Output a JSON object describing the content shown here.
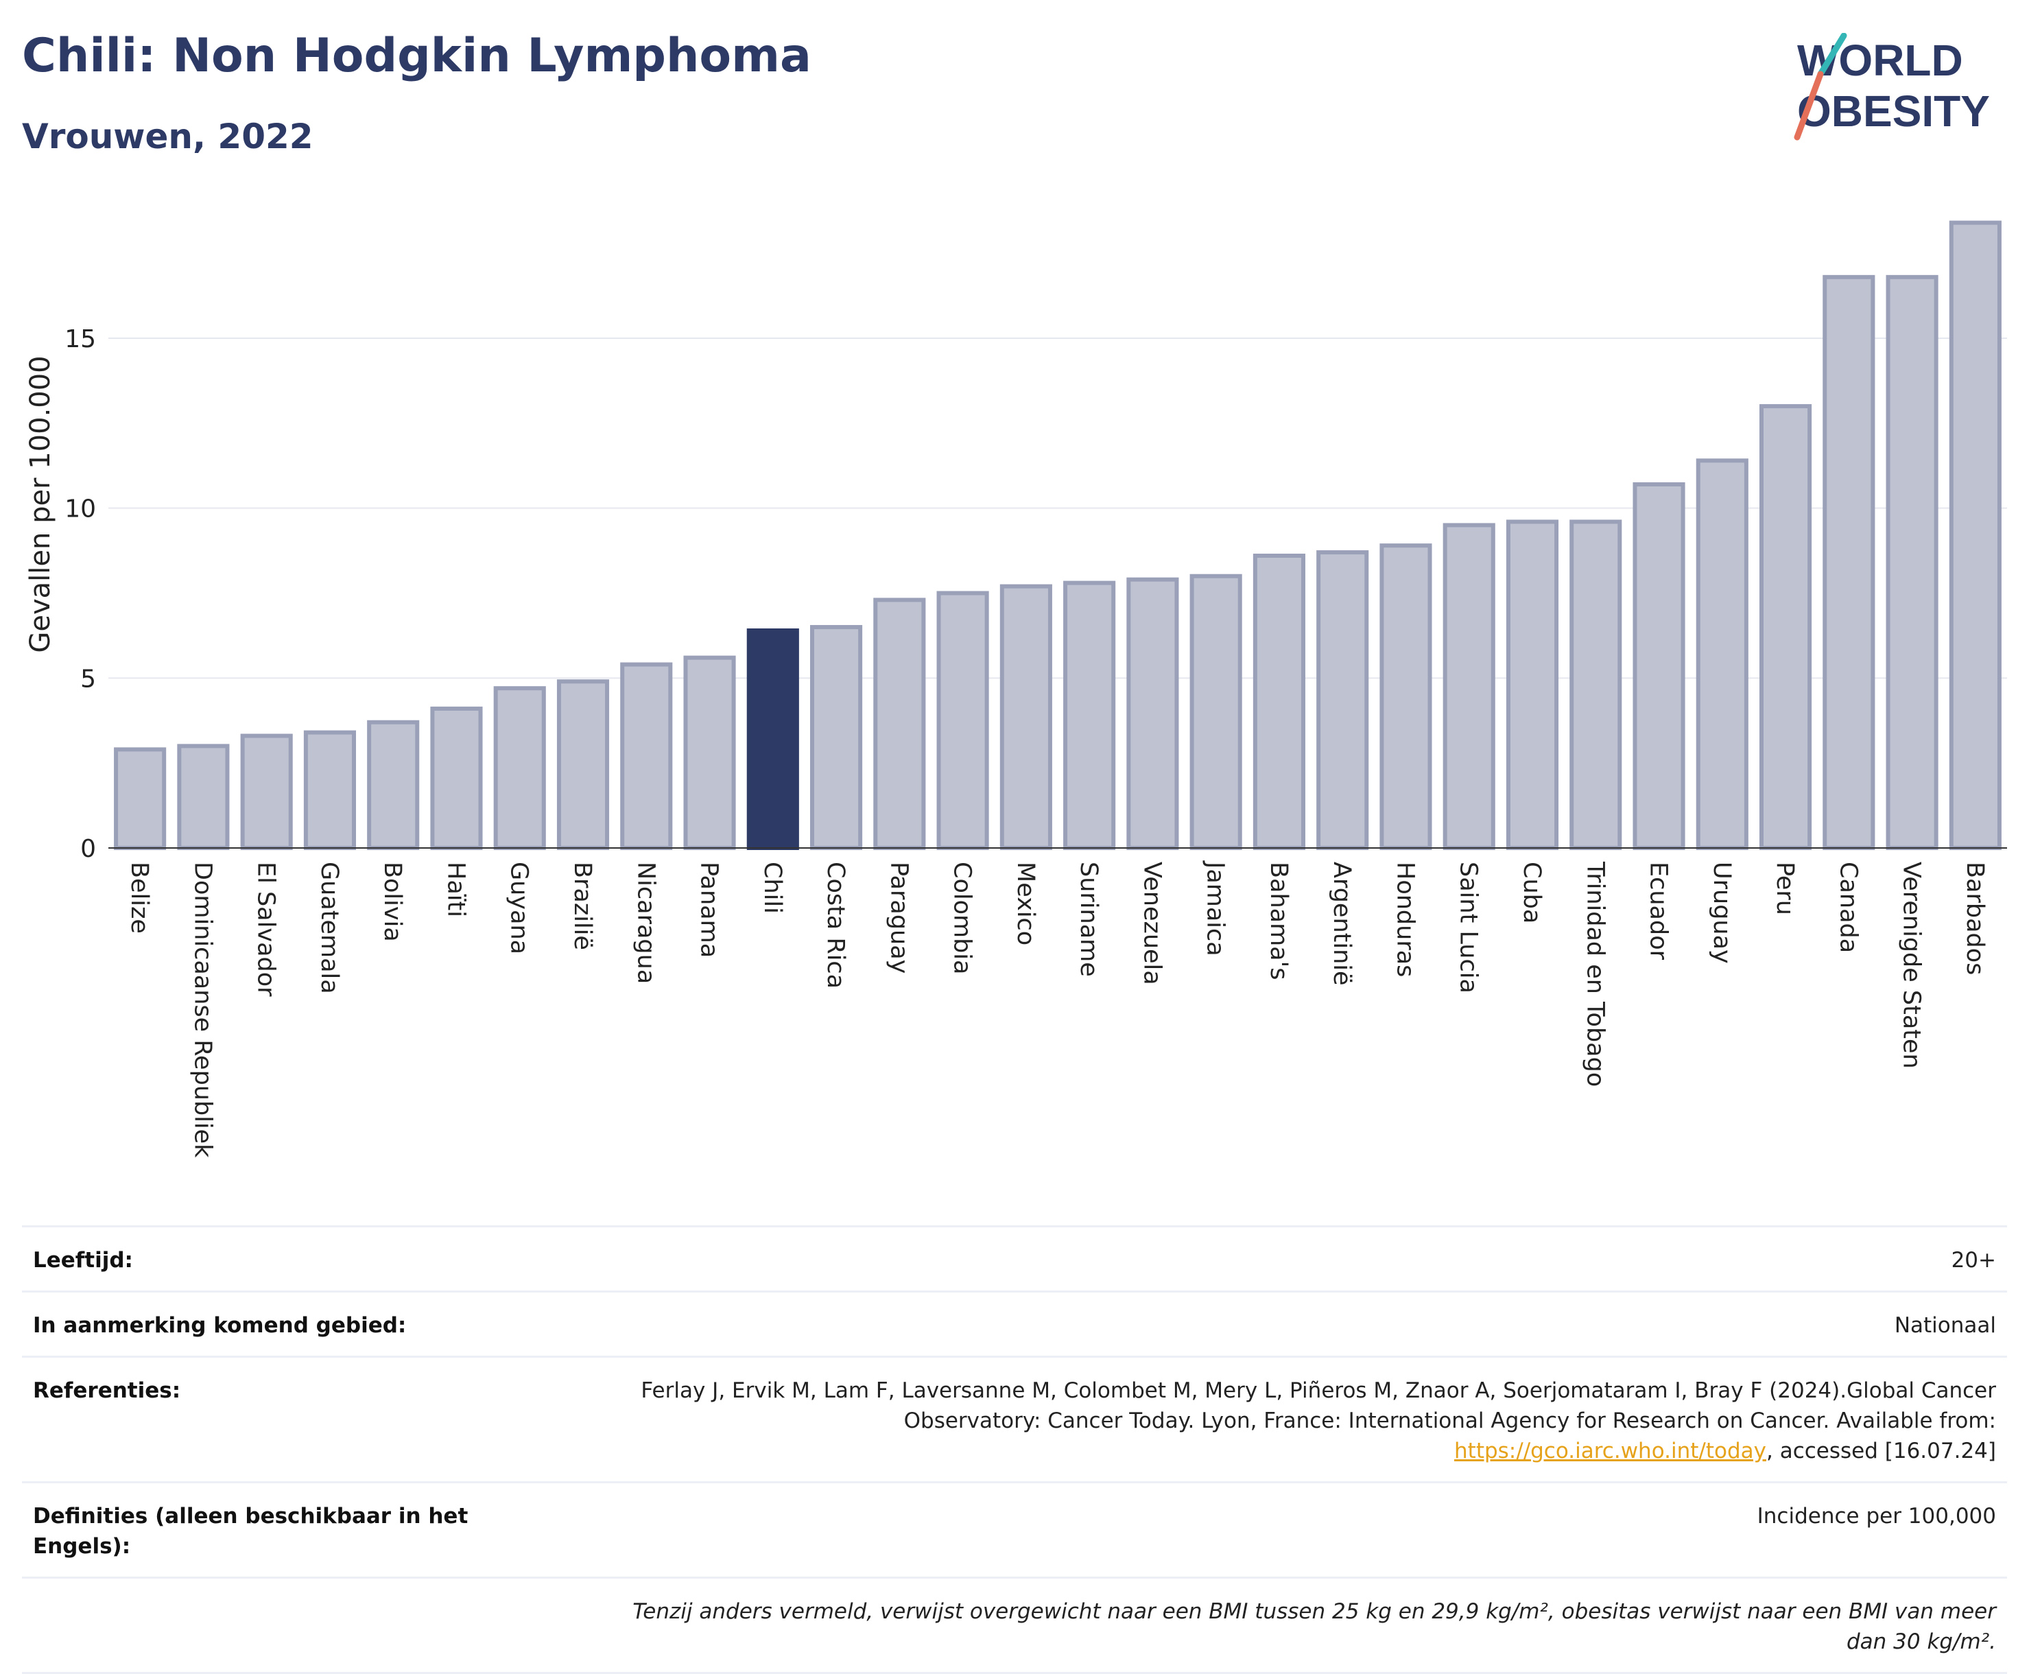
{
  "header": {
    "title": "Chili: Non Hodgkin Lymphoma",
    "subtitle": "Vrouwen, 2022"
  },
  "logo": {
    "line1": "WORLD",
    "line2": "OBESITY"
  },
  "chart_data": {
    "type": "bar",
    "ylabel": "Gevallen per 100.000",
    "xlabel": "",
    "ylim": [
      0,
      19
    ],
    "yticks": [
      0,
      5,
      10,
      15
    ],
    "grid": true,
    "highlight": "Chili",
    "colors": {
      "bar": "#bfc3d1",
      "bar_edge": "#9aa0b8",
      "highlight": "#2d3a66"
    },
    "categories": [
      "Belize",
      "Dominicaanse Republiek",
      "El Salvador",
      "Guatemala",
      "Bolivia",
      "Haïti",
      "Guyana",
      "Brazilië",
      "Nicaragua",
      "Panama",
      "Chili",
      "Costa Rica",
      "Paraguay",
      "Colombia",
      "Mexico",
      "Suriname",
      "Venezuela",
      "Jamaica",
      "Bahama's",
      "Argentinië",
      "Honduras",
      "Saint Lucia",
      "Cuba",
      "Trinidad en Tobago",
      "Ecuador",
      "Uruguay",
      "Peru",
      "Canada",
      "Verenigde Staten",
      "Barbados"
    ],
    "values": [
      2.9,
      3.0,
      3.3,
      3.4,
      3.7,
      4.1,
      4.7,
      4.9,
      5.4,
      5.6,
      6.4,
      6.5,
      7.3,
      7.5,
      7.7,
      7.8,
      7.9,
      8.0,
      8.6,
      8.7,
      8.9,
      9.5,
      9.6,
      9.6,
      10.7,
      11.4,
      13.0,
      16.8,
      16.8,
      18.4
    ]
  },
  "info": {
    "age_label": "Leeftijd:",
    "age_value": "20+",
    "area_label": "In aanmerking komend gebied:",
    "area_value": "Nationaal",
    "ref_label": "Referenties:",
    "ref_text_1": "Ferlay J, Ervik M, Lam F, Laversanne M, Colombet M, Mery L, Piñeros M, Znaor A, Soerjomataram I, Bray F (2024).Global Cancer Observatory: Cancer Today. Lyon, France: International Agency for Research on Cancer. Available from: ",
    "ref_link": "https://gco.iarc.who.int/today",
    "ref_text_2": ", accessed [16.07.24]",
    "def_label": "Definities (alleen beschikbaar in het Engels):",
    "def_value": "Incidence per 100,000",
    "note": "Tenzij anders vermeld, verwijst overgewicht naar een BMI tussen 25 kg en 29,9 kg/m², obesitas verwijst naar een BMI van meer dan 30 kg/m²."
  }
}
